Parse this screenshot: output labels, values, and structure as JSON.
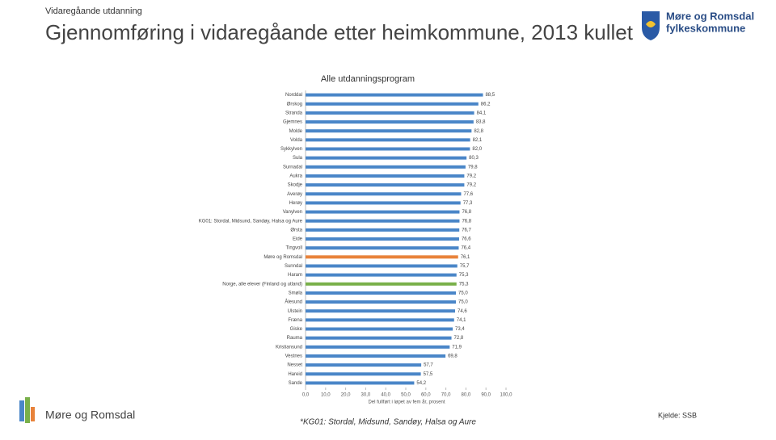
{
  "header": {
    "kicker": "Vidaregåande utdanning",
    "title": "Gjennomføring i vidaregåande etter heimkommune, 2013 kullet",
    "logo_line1": "Møre og Romsdal",
    "logo_line2": "fylkeskommune"
  },
  "footer": {
    "brand": "Møre og Romsdal",
    "note": "*KG01: Stordal, Midsund, Sandøy, Halsa og Aure",
    "source": "Kjelde: SSB"
  },
  "chart_data": {
    "type": "hbar",
    "title": "Alle utdanningsprogram",
    "x_label": "Del fullført i løpet av fem år, prosent",
    "categories": [
      "Norddal",
      "Ørskog",
      "Stranda",
      "Gjemnes",
      "Molde",
      "Volda",
      "Sykkylven",
      "Sula",
      "Surnadal",
      "Aukra",
      "Skodje",
      "Averøy",
      "Herøy",
      "Vanylven",
      "KG01: Stordal, Midsund, Sandøy, Halsa og Aure",
      "Ørsta",
      "Eide",
      "Tingvoll",
      "Møre og Romsdal",
      "Sunndal",
      "Haram",
      "Norge, alle elever (Finland og utland)",
      "Smøla",
      "Ålesund",
      "Ulstein",
      "Fræna",
      "Giske",
      "Rauma",
      "Kristiansund",
      "Vestnes",
      "Nesset",
      "Hareid",
      "Sande"
    ],
    "values": [
      88.5,
      86.2,
      84.1,
      83.8,
      82.8,
      82.1,
      82.0,
      80.3,
      79.8,
      79.2,
      79.2,
      77.6,
      77.3,
      76.8,
      76.8,
      76.7,
      76.6,
      76.4,
      76.1,
      75.7,
      75.3,
      75.3,
      75.0,
      75.0,
      74.6,
      74.1,
      73.4,
      72.8,
      71.9,
      69.8,
      57.7,
      57.5,
      54.2
    ],
    "value_labels": [
      "88,5",
      "86,2",
      "84,1",
      "83,8",
      "82,8",
      "82,1",
      "82,0",
      "80,3",
      "79,8",
      "79,2",
      "79,2",
      "77,6",
      "77,3",
      "76,8",
      "76,8",
      "76,7",
      "76,6",
      "76,4",
      "76,1",
      "75,7",
      "75,3",
      "75,3",
      "75,0",
      "75,0",
      "74,6",
      "74,1",
      "73,4",
      "72,8",
      "71,9",
      "69,8",
      "57,7",
      "57,5",
      "54,2"
    ],
    "colors": [
      "#4a86c8",
      "#4a86c8",
      "#4a86c8",
      "#4a86c8",
      "#4a86c8",
      "#4a86c8",
      "#4a86c8",
      "#4a86c8",
      "#4a86c8",
      "#4a86c8",
      "#4a86c8",
      "#4a86c8",
      "#4a86c8",
      "#4a86c8",
      "#4a86c8",
      "#4a86c8",
      "#4a86c8",
      "#4a86c8",
      "#e8823a",
      "#4a86c8",
      "#4a86c8",
      "#79b04a",
      "#4a86c8",
      "#4a86c8",
      "#4a86c8",
      "#4a86c8",
      "#4a86c8",
      "#4a86c8",
      "#4a86c8",
      "#4a86c8",
      "#4a86c8",
      "#4a86c8",
      "#4a86c8"
    ],
    "xlim": [
      0,
      100
    ],
    "xticks": [
      {
        "value": 0,
        "label": "0,0"
      },
      {
        "value": 10,
        "label": "10,0"
      },
      {
        "value": 20,
        "label": "20,0"
      },
      {
        "value": 30,
        "label": "30,0"
      },
      {
        "value": 40,
        "label": "40,0"
      },
      {
        "value": 50,
        "label": "50,0"
      },
      {
        "value": 60,
        "label": "60,0"
      },
      {
        "value": 70,
        "label": "70,0"
      },
      {
        "value": 80,
        "label": "80,0"
      },
      {
        "value": 90,
        "label": "90,0"
      },
      {
        "value": 100,
        "label": "100,0"
      }
    ]
  }
}
